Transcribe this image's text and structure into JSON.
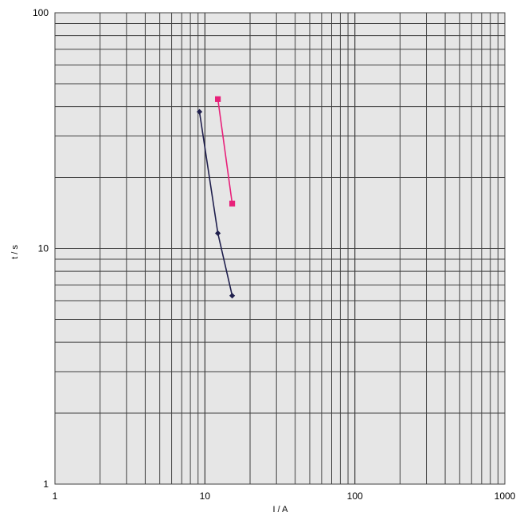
{
  "chart_data": {
    "type": "line",
    "xscale": "log",
    "yscale": "log",
    "xlim": [
      1,
      1000
    ],
    "ylim": [
      1,
      100
    ],
    "xlabel": "I / A",
    "ylabel": "t / s",
    "xticks": [
      "1",
      "10",
      "100",
      "1000"
    ],
    "yticks": [
      "1",
      "10",
      "100"
    ],
    "grid": true,
    "legend": "none",
    "plot_background": "#e6e6e6",
    "grid_color": "#404040",
    "series": [
      {
        "color": "#1f1f4d",
        "marker": "diamond",
        "points": [
          {
            "x": 9.2,
            "y": 38
          },
          {
            "x": 12.2,
            "y": 11.6
          },
          {
            "x": 15.2,
            "y": 6.3
          }
        ]
      },
      {
        "color": "#e8217a",
        "marker": "square",
        "points": [
          {
            "x": 12.2,
            "y": 43
          },
          {
            "x": 15.2,
            "y": 15.5
          }
        ]
      }
    ]
  }
}
